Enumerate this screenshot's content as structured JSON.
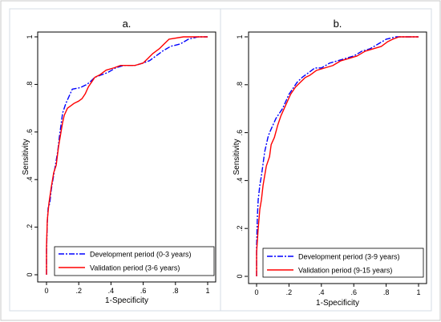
{
  "chart_data": [
    {
      "type": "line",
      "title": "a.",
      "xlabel": "1-Specificity",
      "ylabel": "Sensitivity",
      "xlim": [
        0,
        1
      ],
      "ylim": [
        0,
        1
      ],
      "x_ticks": [
        "0",
        ".2",
        ".4",
        ".6",
        ".8",
        "1"
      ],
      "y_ticks": [
        "0",
        ".2",
        ".4",
        ".6",
        ".8",
        "1"
      ],
      "grid": false,
      "legend_position": "bottom-right",
      "series": [
        {
          "name": "Development period (0-3 years)",
          "color": "#0000ff",
          "dash": "dash-dot",
          "points": [
            [
              0,
              0
            ],
            [
              0,
              0.1
            ],
            [
              0.005,
              0.22
            ],
            [
              0.01,
              0.28
            ],
            [
              0.02,
              0.3
            ],
            [
              0.03,
              0.36
            ],
            [
              0.04,
              0.4
            ],
            [
              0.05,
              0.44
            ],
            [
              0.06,
              0.48
            ],
            [
              0.07,
              0.52
            ],
            [
              0.08,
              0.58
            ],
            [
              0.09,
              0.63
            ],
            [
              0.1,
              0.68
            ],
            [
              0.11,
              0.7
            ],
            [
              0.12,
              0.72
            ],
            [
              0.14,
              0.75
            ],
            [
              0.16,
              0.78
            ],
            [
              0.2,
              0.785
            ],
            [
              0.22,
              0.79
            ],
            [
              0.25,
              0.8
            ],
            [
              0.27,
              0.81
            ],
            [
              0.3,
              0.83
            ],
            [
              0.34,
              0.84
            ],
            [
              0.38,
              0.85
            ],
            [
              0.43,
              0.87
            ],
            [
              0.48,
              0.88
            ],
            [
              0.55,
              0.88
            ],
            [
              0.6,
              0.89
            ],
            [
              0.64,
              0.9
            ],
            [
              0.68,
              0.92
            ],
            [
              0.72,
              0.94
            ],
            [
              0.77,
              0.96
            ],
            [
              0.83,
              0.97
            ],
            [
              0.88,
              0.99
            ],
            [
              0.94,
              1
            ],
            [
              1,
              1
            ]
          ]
        },
        {
          "name": "Validation period (3-6 years)",
          "color": "#ff0000",
          "dash": "solid",
          "points": [
            [
              0,
              0
            ],
            [
              0,
              0.12
            ],
            [
              0.005,
              0.23
            ],
            [
              0.015,
              0.3
            ],
            [
              0.03,
              0.37
            ],
            [
              0.045,
              0.43
            ],
            [
              0.06,
              0.46
            ],
            [
              0.075,
              0.54
            ],
            [
              0.09,
              0.6
            ],
            [
              0.1,
              0.64
            ],
            [
              0.11,
              0.67
            ],
            [
              0.13,
              0.7
            ],
            [
              0.15,
              0.71
            ],
            [
              0.17,
              0.72
            ],
            [
              0.2,
              0.73
            ],
            [
              0.22,
              0.74
            ],
            [
              0.24,
              0.76
            ],
            [
              0.26,
              0.79
            ],
            [
              0.28,
              0.81
            ],
            [
              0.3,
              0.83
            ],
            [
              0.33,
              0.84
            ],
            [
              0.37,
              0.86
            ],
            [
              0.42,
              0.87
            ],
            [
              0.46,
              0.88
            ],
            [
              0.55,
              0.88
            ],
            [
              0.6,
              0.89
            ],
            [
              0.63,
              0.91
            ],
            [
              0.66,
              0.93
            ],
            [
              0.7,
              0.95
            ],
            [
              0.73,
              0.97
            ],
            [
              0.76,
              0.99
            ],
            [
              0.85,
              1
            ],
            [
              1,
              1
            ]
          ]
        }
      ]
    },
    {
      "type": "line",
      "title": "b.",
      "xlabel": "1-Specificity",
      "ylabel": "Sensitivity",
      "xlim": [
        0,
        1
      ],
      "ylim": [
        0,
        1
      ],
      "x_ticks": [
        "0",
        ".2",
        ".4",
        ".6",
        ".8",
        "1"
      ],
      "y_ticks": [
        "0",
        ".2",
        ".4",
        ".6",
        ".8",
        "1"
      ],
      "grid": false,
      "legend_position": "bottom-right",
      "series": [
        {
          "name": "Development period (3-9 years)",
          "color": "#0000ff",
          "dash": "dash-dot",
          "points": [
            [
              0,
              0
            ],
            [
              0,
              0.12
            ],
            [
              0.005,
              0.25
            ],
            [
              0.01,
              0.32
            ],
            [
              0.02,
              0.38
            ],
            [
              0.03,
              0.42
            ],
            [
              0.04,
              0.47
            ],
            [
              0.05,
              0.52
            ],
            [
              0.06,
              0.55
            ],
            [
              0.07,
              0.58
            ],
            [
              0.08,
              0.6
            ],
            [
              0.1,
              0.63
            ],
            [
              0.12,
              0.66
            ],
            [
              0.14,
              0.68
            ],
            [
              0.16,
              0.7
            ],
            [
              0.18,
              0.73
            ],
            [
              0.2,
              0.76
            ],
            [
              0.22,
              0.78
            ],
            [
              0.25,
              0.81
            ],
            [
              0.28,
              0.83
            ],
            [
              0.32,
              0.85
            ],
            [
              0.36,
              0.87
            ],
            [
              0.4,
              0.87
            ],
            [
              0.45,
              0.89
            ],
            [
              0.5,
              0.9
            ],
            [
              0.55,
              0.91
            ],
            [
              0.6,
              0.92
            ],
            [
              0.65,
              0.94
            ],
            [
              0.7,
              0.95
            ],
            [
              0.75,
              0.97
            ],
            [
              0.8,
              0.99
            ],
            [
              0.86,
              1
            ],
            [
              1,
              1
            ]
          ]
        },
        {
          "name": "Validation period (9-15 years)",
          "color": "#ff0000",
          "dash": "solid",
          "points": [
            [
              0,
              0
            ],
            [
              0,
              0.1
            ],
            [
              0.01,
              0.2
            ],
            [
              0.02,
              0.28
            ],
            [
              0.03,
              0.32
            ],
            [
              0.04,
              0.38
            ],
            [
              0.05,
              0.42
            ],
            [
              0.06,
              0.46
            ],
            [
              0.08,
              0.5
            ],
            [
              0.09,
              0.55
            ],
            [
              0.11,
              0.58
            ],
            [
              0.13,
              0.63
            ],
            [
              0.15,
              0.67
            ],
            [
              0.17,
              0.7
            ],
            [
              0.19,
              0.73
            ],
            [
              0.21,
              0.76
            ],
            [
              0.24,
              0.79
            ],
            [
              0.27,
              0.81
            ],
            [
              0.3,
              0.83
            ],
            [
              0.33,
              0.84
            ],
            [
              0.37,
              0.86
            ],
            [
              0.42,
              0.87
            ],
            [
              0.47,
              0.88
            ],
            [
              0.52,
              0.9
            ],
            [
              0.57,
              0.91
            ],
            [
              0.62,
              0.92
            ],
            [
              0.67,
              0.94
            ],
            [
              0.72,
              0.95
            ],
            [
              0.77,
              0.96
            ],
            [
              0.81,
              0.98
            ],
            [
              0.84,
              0.99
            ],
            [
              0.88,
              1
            ],
            [
              1,
              1
            ]
          ]
        }
      ]
    }
  ]
}
